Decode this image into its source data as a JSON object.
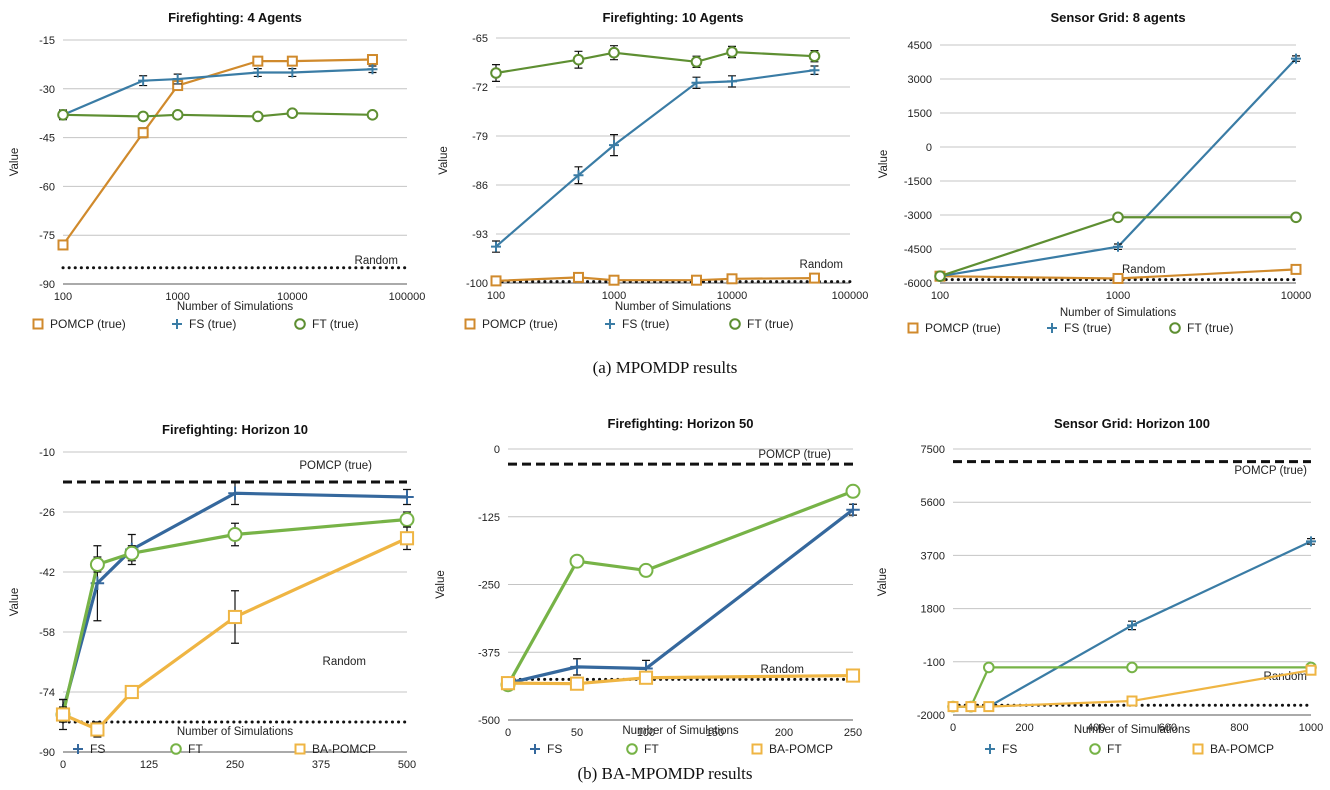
{
  "captions": {
    "a": "(a) MPOMDP results",
    "b": "(b) BA-MPOMDP results"
  },
  "colors": {
    "orange": "#d08a2c",
    "blue": "#3a7ca5",
    "green": "#5e8f32",
    "light_green": "#77b347",
    "dark_blue": "#35689d",
    "light_orange": "#efb543"
  },
  "chart_data": [
    {
      "type": "line",
      "title": "Firefighting: 4 Agents",
      "xlabel": "Number of Simulations",
      "ylabel": "Value",
      "xscale": "log",
      "xlim": [
        100,
        100000
      ],
      "xticks": [
        100,
        1000,
        10000,
        100000
      ],
      "xtick_labels": [
        "100",
        "1000",
        "10000",
        "100000"
      ],
      "ylim": [
        -90,
        -15
      ],
      "yticks": [
        -90,
        -75,
        -60,
        -45,
        -30,
        -15
      ],
      "grid": true,
      "legend_position": "bottom",
      "series": [
        {
          "name": "POMCP (true)",
          "marker": "square",
          "color": "#d08a2c",
          "x": [
            100,
            500,
            1000,
            5000,
            10000,
            50000
          ],
          "values": [
            -78,
            -43.5,
            -29,
            -21.5,
            -21.5,
            -21
          ],
          "err": [
            1.2,
            1.5,
            1.2,
            1.0,
            1.0,
            0.8
          ]
        },
        {
          "name": "FS (true)",
          "marker": "plus",
          "color": "#3a7ca5",
          "x": [
            100,
            500,
            1000,
            5000,
            10000,
            50000
          ],
          "values": [
            -38,
            -27.5,
            -27,
            -25,
            -25,
            -24
          ],
          "err": [
            1.5,
            1.5,
            1.5,
            1.2,
            1.2,
            1.0
          ]
        },
        {
          "name": "FT (true)",
          "marker": "circle",
          "color": "#5e8f32",
          "x": [
            100,
            500,
            1000,
            5000,
            10000,
            50000
          ],
          "values": [
            -38,
            -38.5,
            -38,
            -38.5,
            -37.5,
            -38
          ],
          "err": [
            1.2,
            1.2,
            1.0,
            1.0,
            0.8,
            0.8
          ]
        }
      ],
      "reference_lines": [
        {
          "label": "Random",
          "y": -85,
          "style": "dotted"
        }
      ]
    },
    {
      "type": "line",
      "title": "Firefighting: 10 Agents",
      "xlabel": "Number of Simulations",
      "ylabel": "Value",
      "xscale": "log",
      "xlim": [
        100,
        100000
      ],
      "xticks": [
        100,
        1000,
        10000,
        100000
      ],
      "xtick_labels": [
        "100",
        "1000",
        "10000",
        "100000"
      ],
      "ylim": [
        -100,
        -65
      ],
      "yticks": [
        -100,
        -93,
        -86,
        -79,
        -72,
        -65
      ],
      "grid": true,
      "legend_position": "bottom",
      "series": [
        {
          "name": "POMCP (true)",
          "marker": "square",
          "color": "#d08a2c",
          "x": [
            100,
            500,
            1000,
            5000,
            10000,
            50000
          ],
          "values": [
            -99.7,
            -99.2,
            -99.6,
            -99.6,
            -99.4,
            -99.3
          ],
          "err": [
            0.3,
            0.3,
            0.3,
            0.3,
            0.3,
            0.3
          ]
        },
        {
          "name": "FS (true)",
          "marker": "plus",
          "color": "#3a7ca5",
          "x": [
            100,
            500,
            1000,
            5000,
            10000,
            50000
          ],
          "values": [
            -94.8,
            -84.6,
            -80.3,
            -71.4,
            -71.2,
            -69.6
          ],
          "err": [
            0.8,
            1.2,
            1.5,
            0.8,
            0.8,
            0.6
          ]
        },
        {
          "name": "FT (true)",
          "marker": "circle",
          "color": "#5e8f32",
          "x": [
            100,
            500,
            1000,
            5000,
            10000,
            50000
          ],
          "values": [
            -70,
            -68.1,
            -67.1,
            -68.4,
            -67,
            -67.6
          ],
          "err": [
            1.2,
            1.2,
            1.0,
            0.8,
            0.8,
            0.8
          ]
        }
      ],
      "reference_lines": [
        {
          "label": "Random",
          "y": -99.8,
          "style": "dotted"
        }
      ]
    },
    {
      "type": "line",
      "title": "Sensor Grid: 8 agents",
      "xlabel": "Number of Simulations",
      "ylabel": "Value",
      "xscale": "log",
      "xlim": [
        100,
        10000
      ],
      "xticks": [
        100,
        1000,
        10000
      ],
      "xtick_labels": [
        "100",
        "1000",
        "10000"
      ],
      "ylim": [
        -6000,
        4500
      ],
      "yticks": [
        -6000,
        -4500,
        -3000,
        -1500,
        0,
        1500,
        3000,
        4500
      ],
      "grid": true,
      "legend_position": "bottom",
      "series": [
        {
          "name": "POMCP (true)",
          "marker": "square",
          "color": "#d08a2c",
          "x": [
            100,
            1000,
            10000
          ],
          "values": [
            -5700,
            -5800,
            -5400
          ],
          "err": [
            60,
            60,
            60
          ]
        },
        {
          "name": "FS (true)",
          "marker": "plus",
          "color": "#3a7ca5",
          "x": [
            100,
            1000,
            10000
          ],
          "values": [
            -5700,
            -4400,
            3900
          ],
          "err": [
            80,
            120,
            120
          ]
        },
        {
          "name": "FT (true)",
          "marker": "circle",
          "color": "#5e8f32",
          "x": [
            100,
            1000,
            10000
          ],
          "values": [
            -5700,
            -3100,
            -3100
          ],
          "err": [
            60,
            60,
            60
          ]
        }
      ],
      "reference_lines": [
        {
          "label": "Random",
          "y": -5850,
          "style": "dotted"
        }
      ]
    },
    {
      "type": "line",
      "title": "Firefighting: Horizon 10",
      "xlabel": "Number of Simulations",
      "ylabel": "Value",
      "xscale": "linear",
      "xlim": [
        0,
        500
      ],
      "xticks": [
        0,
        125,
        250,
        375,
        500
      ],
      "xtick_labels": [
        "0",
        "125",
        "250",
        "375",
        "500"
      ],
      "ylim": [
        -90,
        -10
      ],
      "yticks": [
        -90,
        -74,
        -58,
        -42,
        -26,
        -10
      ],
      "grid": true,
      "legend_position": "bottom",
      "series": [
        {
          "name": "FS",
          "marker": "plus",
          "color": "#35689d",
          "x": [
            0,
            50,
            100,
            250,
            500
          ],
          "values": [
            -79,
            -45,
            -36,
            -21,
            -22
          ],
          "err": [
            3,
            10,
            4,
            3,
            2
          ]
        },
        {
          "name": "FT",
          "marker": "circle",
          "color": "#77b347",
          "x": [
            0,
            50,
            100,
            250,
            500
          ],
          "values": [
            -80,
            -40,
            -37,
            -32,
            -28
          ],
          "err": [
            2,
            2,
            2,
            3,
            2
          ]
        },
        {
          "name": "BA-POMCP",
          "marker": "square",
          "color": "#efb543",
          "x": [
            0,
            50,
            100,
            250,
            500
          ],
          "values": [
            -80,
            -84,
            -74,
            -54,
            -33
          ],
          "err": [
            4,
            2,
            1,
            7,
            3
          ]
        }
      ],
      "reference_lines": [
        {
          "label": "POMCP (true)",
          "y": -18,
          "style": "dashed"
        },
        {
          "label": "Random",
          "y": -82,
          "style": "dotted"
        }
      ]
    },
    {
      "type": "line",
      "title": "Firefighting: Horizon 50",
      "xlabel": "Number of Simulations",
      "ylabel": "Value",
      "xscale": "linear",
      "xlim": [
        0,
        250
      ],
      "xticks": [
        0,
        50,
        100,
        150,
        200,
        250
      ],
      "xtick_labels": [
        "0",
        "50",
        "100",
        "150",
        "200",
        "250"
      ],
      "ylim": [
        -500,
        0
      ],
      "yticks": [
        -500,
        -375,
        -250,
        -125,
        0
      ],
      "grid": true,
      "legend_position": "bottom",
      "series": [
        {
          "name": "FS",
          "marker": "plus",
          "color": "#35689d",
          "x": [
            0,
            50,
            100,
            250
          ],
          "values": [
            -432,
            -402,
            -405,
            -112
          ],
          "err": [
            10,
            15,
            15,
            10
          ]
        },
        {
          "name": "FT",
          "marker": "circle",
          "color": "#77b347",
          "x": [
            0,
            50,
            100,
            250
          ],
          "values": [
            -435,
            -207,
            -224,
            -78
          ],
          "err": [
            10,
            10,
            8,
            10
          ]
        },
        {
          "name": "BA-POMCP",
          "marker": "square",
          "color": "#efb543",
          "x": [
            0,
            50,
            100,
            250
          ],
          "values": [
            -432,
            -433,
            -422,
            -418
          ],
          "err": [
            10,
            10,
            8,
            10
          ]
        }
      ],
      "reference_lines": [
        {
          "label": "POMCP (true)",
          "y": -28,
          "style": "dashed"
        },
        {
          "label": "Random",
          "y": -425,
          "style": "dotted"
        }
      ]
    },
    {
      "type": "line",
      "title": "Sensor Grid: Horizon 100",
      "xlabel": "Number of Simulations",
      "ylabel": "Value",
      "xscale": "linear",
      "xlim": [
        0,
        1000
      ],
      "xticks": [
        0,
        200,
        400,
        600,
        800,
        1000
      ],
      "xtick_labels": [
        "0",
        "200",
        "400",
        "600",
        "800",
        "1000"
      ],
      "ylim": [
        -2000,
        7500
      ],
      "yticks": [
        -2000,
        -100,
        1800,
        3700,
        5600,
        7500
      ],
      "grid": true,
      "legend_position": "bottom",
      "series": [
        {
          "name": "FS",
          "marker": "plus",
          "color": "#3a7ca5",
          "x": [
            0,
            50,
            100,
            500,
            1000
          ],
          "values": [
            -1700,
            -1700,
            -1700,
            1200,
            4200
          ],
          "err": [
            100,
            100,
            100,
            150,
            100
          ]
        },
        {
          "name": "FT",
          "marker": "circle",
          "color": "#77b347",
          "x": [
            0,
            50,
            100,
            500,
            1000
          ],
          "values": [
            -1700,
            -1700,
            -300,
            -300,
            -300
          ],
          "err": [
            80,
            80,
            80,
            80,
            80
          ]
        },
        {
          "name": "BA-POMCP",
          "marker": "square",
          "color": "#efb543",
          "x": [
            0,
            50,
            100,
            500,
            1000
          ],
          "values": [
            -1700,
            -1700,
            -1700,
            -1500,
            -400
          ],
          "err": [
            80,
            80,
            80,
            80,
            80
          ]
        }
      ],
      "reference_lines": [
        {
          "label": "POMCP (true)",
          "y": 7050,
          "style": "dashed"
        },
        {
          "label": "Random",
          "y": -1650,
          "style": "dotted"
        }
      ]
    }
  ]
}
